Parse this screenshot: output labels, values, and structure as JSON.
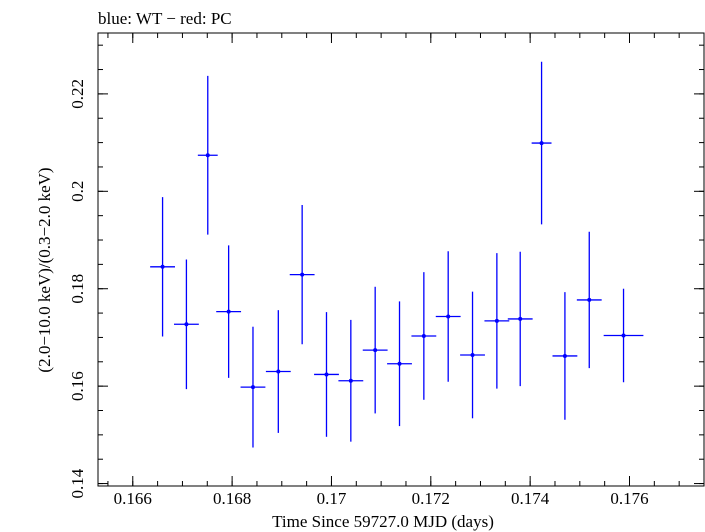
{
  "chart_data": {
    "type": "scatter",
    "title": "blue: WT − red: PC",
    "xlabel": "Time Since 59727.0 MJD (days)",
    "ylabel": "(2.0−10.0 keV)/(0.3−2.0 keV)",
    "xlim": [
      0.1653,
      0.1775
    ],
    "ylim": [
      0.1395,
      0.2325
    ],
    "x_ticks": [
      0.166,
      0.168,
      0.17,
      0.172,
      0.174,
      0.176
    ],
    "x_tick_labels": [
      "0.166",
      "0.168",
      "0.17",
      "0.172",
      "0.174",
      "0.176"
    ],
    "y_ticks": [
      0.14,
      0.16,
      0.18,
      0.2,
      0.22
    ],
    "y_tick_labels": [
      "0.14",
      "0.16",
      "0.18",
      "0.2",
      "0.22"
    ],
    "grid": false,
    "series": [
      {
        "name": "WT",
        "color": "#0000ff",
        "points": [
          {
            "x": 0.1666,
            "xerr": 0.00025,
            "y": 0.1845,
            "yerr": 0.0143
          },
          {
            "x": 0.16708,
            "xerr": 0.00025,
            "y": 0.1727,
            "yerr": 0.0133
          },
          {
            "x": 0.16751,
            "xerr": 0.0002,
            "y": 0.2074,
            "yerr": 0.0163
          },
          {
            "x": 0.16793,
            "xerr": 0.00025,
            "y": 0.1753,
            "yerr": 0.0136
          },
          {
            "x": 0.16842,
            "xerr": 0.00025,
            "y": 0.1598,
            "yerr": 0.0124
          },
          {
            "x": 0.16893,
            "xerr": 0.00025,
            "y": 0.163,
            "yerr": 0.0126
          },
          {
            "x": 0.16941,
            "xerr": 0.00025,
            "y": 0.1829,
            "yerr": 0.0143
          },
          {
            "x": 0.1699,
            "xerr": 0.00025,
            "y": 0.1624,
            "yerr": 0.0128
          },
          {
            "x": 0.17039,
            "xerr": 0.00025,
            "y": 0.1611,
            "yerr": 0.0125
          },
          {
            "x": 0.17088,
            "xerr": 0.00025,
            "y": 0.1674,
            "yerr": 0.013
          },
          {
            "x": 0.17137,
            "xerr": 0.00025,
            "y": 0.1646,
            "yerr": 0.0128
          },
          {
            "x": 0.17186,
            "xerr": 0.00025,
            "y": 0.1703,
            "yerr": 0.0131
          },
          {
            "x": 0.17235,
            "xerr": 0.00025,
            "y": 0.1743,
            "yerr": 0.0134
          },
          {
            "x": 0.17284,
            "xerr": 0.00025,
            "y": 0.1664,
            "yerr": 0.013
          },
          {
            "x": 0.17333,
            "xerr": 0.00025,
            "y": 0.1734,
            "yerr": 0.0139
          },
          {
            "x": 0.1738,
            "xerr": 0.00025,
            "y": 0.1738,
            "yerr": 0.0138
          },
          {
            "x": 0.17423,
            "xerr": 0.0002,
            "y": 0.2099,
            "yerr": 0.0167
          },
          {
            "x": 0.1747,
            "xerr": 0.00025,
            "y": 0.1662,
            "yerr": 0.0131
          },
          {
            "x": 0.17519,
            "xerr": 0.00025,
            "y": 0.1777,
            "yerr": 0.014
          },
          {
            "x": 0.17588,
            "xerr": 0.0004,
            "y": 0.1704,
            "yerr": 0.0096
          }
        ]
      }
    ]
  }
}
